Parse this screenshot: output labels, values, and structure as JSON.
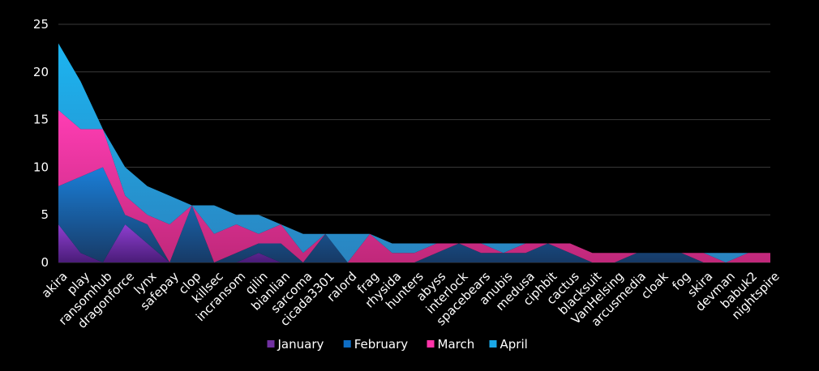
{
  "chart_data": {
    "type": "area",
    "stacked": true,
    "categories": [
      "akira",
      "play",
      "ransomhub",
      "dragonforce",
      "lynx",
      "safepay",
      "clop",
      "killsec",
      "incransom",
      "qilin",
      "bianlian",
      "sarcoma",
      "cicada3301",
      "ralord",
      "frag",
      "rhysida",
      "hunters",
      "abyss",
      "interlock",
      "spacebears",
      "anubis",
      "medusa",
      "ciphbit",
      "cactus",
      "blacksuit",
      "VanHelsing",
      "arcusmedia",
      "cloak",
      "fog",
      "skira",
      "devman",
      "babuk2",
      "nightspire"
    ],
    "series": [
      {
        "name": "January",
        "color": "#7030A0",
        "values": [
          4,
          1,
          0,
          4,
          2,
          0,
          0,
          0,
          0,
          1,
          0,
          0,
          0,
          0,
          0,
          0,
          0,
          0,
          0,
          0,
          0,
          0,
          0,
          0,
          0,
          0,
          0,
          0,
          0,
          0,
          0,
          0,
          0
        ]
      },
      {
        "name": "February",
        "color": "#0E6DC4",
        "values": [
          4,
          8,
          10,
          1,
          2,
          0,
          6,
          0,
          1,
          1,
          2,
          0,
          3,
          0,
          0,
          0,
          0,
          1,
          2,
          1,
          1,
          1,
          2,
          1,
          0,
          0,
          1,
          1,
          1,
          0,
          0,
          0,
          0
        ]
      },
      {
        "name": "March",
        "color": "#FF33A8",
        "values": [
          8,
          5,
          4,
          2,
          1,
          4,
          0,
          3,
          3,
          1,
          2,
          1,
          0,
          0,
          3,
          1,
          1,
          1,
          0,
          1,
          0,
          1,
          0,
          1,
          1,
          1,
          0,
          0,
          0,
          1,
          0,
          1,
          1
        ]
      },
      {
        "name": "April",
        "color": "#1AA8E8",
        "values": [
          7,
          5,
          0,
          3,
          3,
          3,
          0,
          3,
          1,
          2,
          0,
          2,
          0,
          3,
          0,
          1,
          1,
          0,
          0,
          0,
          1,
          0,
          0,
          0,
          0,
          0,
          0,
          0,
          0,
          0,
          1,
          0,
          0
        ]
      }
    ],
    "yticks": [
      0,
      5,
      10,
      15,
      20,
      25
    ],
    "ylim": [
      0,
      25
    ],
    "grid": true,
    "legend_position": "bottom"
  }
}
